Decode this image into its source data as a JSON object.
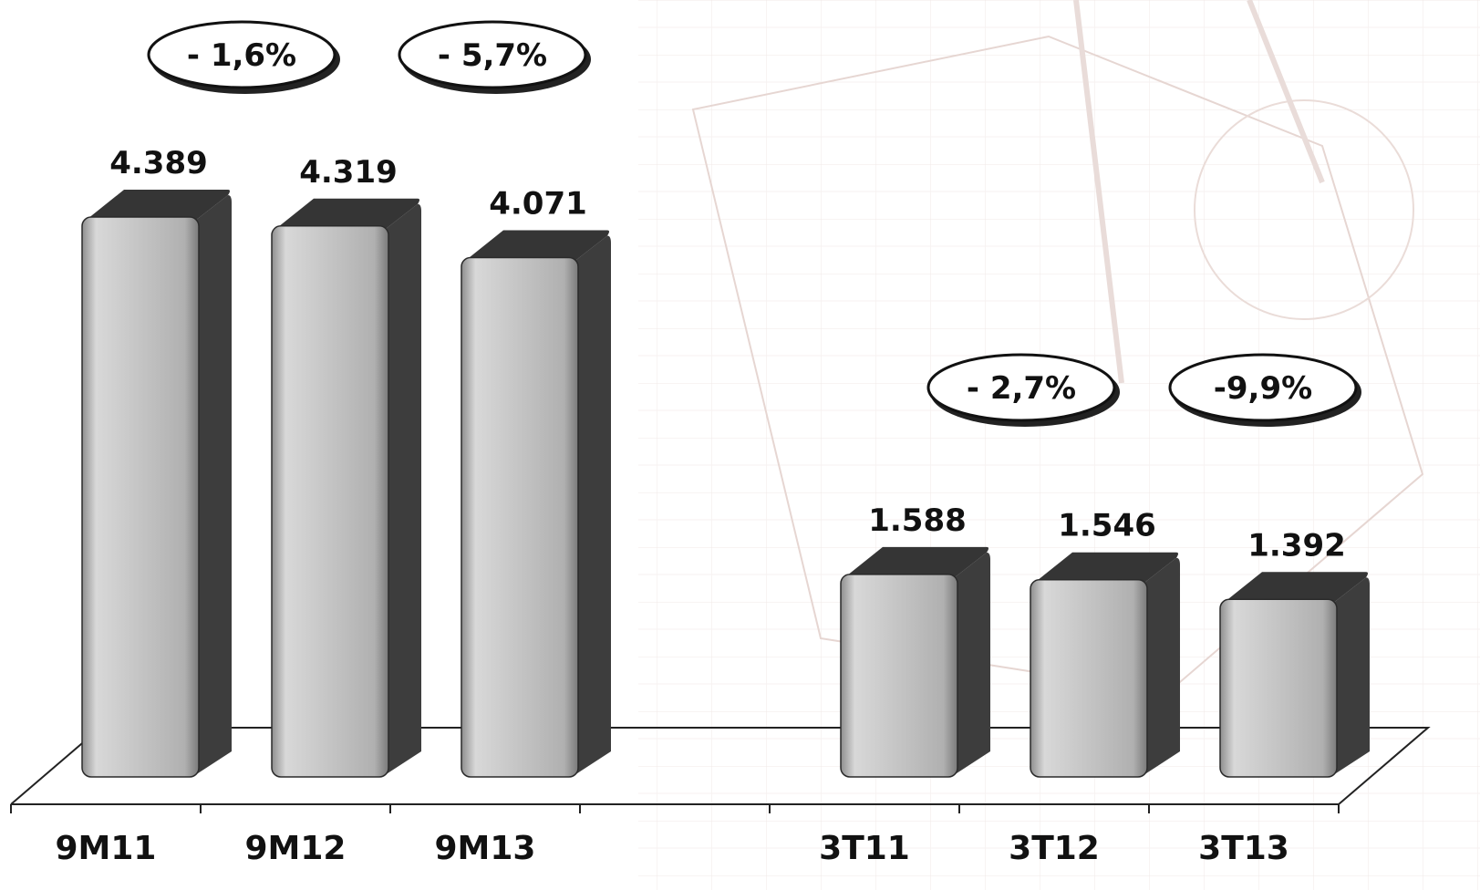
{
  "chart_data": {
    "type": "bar",
    "categories": [
      "9M11",
      "9M12",
      "9M13",
      "",
      "3T11",
      "3T12",
      "3T13"
    ],
    "values": [
      4389,
      4319,
      4071,
      null,
      1588,
      1546,
      1392
    ],
    "value_labels": [
      "4.389",
      "4.319",
      "4.071",
      "",
      "1.588",
      "1.546",
      "1.392"
    ],
    "title": "",
    "xlabel": "",
    "ylabel": "",
    "ylim": [
      0,
      4500
    ],
    "grid": false,
    "legend": "none",
    "annotations": [
      {
        "text": "- 1,6%"
      },
      {
        "text": "- 5,7%"
      },
      {
        "text": "- 2,7%"
      },
      {
        "text": "-9,9%"
      }
    ],
    "colors": {
      "bar_front": "#c4c4c4",
      "bar_side": "#3d3d3d",
      "outline": "#111111"
    }
  }
}
